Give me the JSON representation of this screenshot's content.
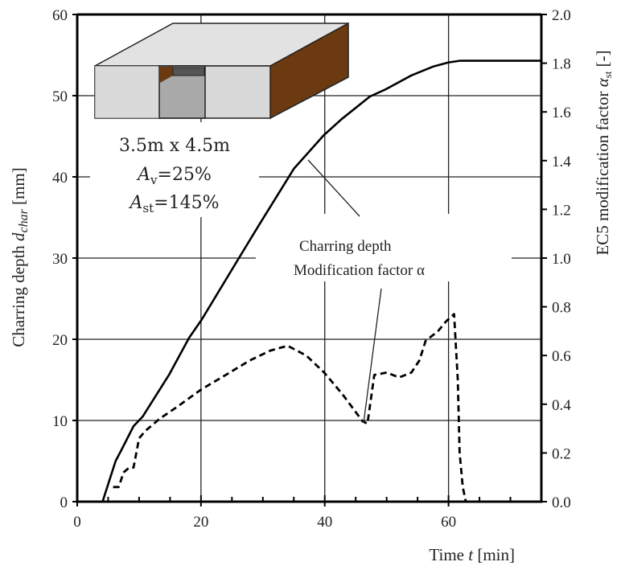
{
  "chart_data": {
    "type": "line",
    "title": "",
    "xlabel": "Time t [min]",
    "ylabel": "Charring depth d_char [mm]",
    "y2label": "EC5 modification factor α_st [-]",
    "xlim": [
      0,
      75
    ],
    "ylim": [
      0,
      60
    ],
    "y2lim": [
      0.0,
      2.0
    ],
    "x_ticks": [
      0,
      20,
      40,
      60
    ],
    "x_minor_step": 5,
    "y_ticks": [
      0,
      10,
      20,
      30,
      40,
      50,
      60
    ],
    "y2_ticks": [
      "0.0",
      "0.2",
      "0.4",
      "0.6",
      "0.8",
      "1.0",
      "1.2",
      "1.4",
      "1.6",
      "1.8",
      "2.0"
    ],
    "grid": true,
    "series": [
      {
        "name": "Charring depth",
        "axis": "left",
        "style": "solid",
        "x": [
          4.1,
          6.2,
          7.1,
          9.1,
          10.6,
          14.9,
          18.1,
          20.1,
          26.2,
          29.4,
          35.0,
          39.8,
          42.7,
          47.3,
          49.9,
          54.0,
          57.6,
          60.0,
          61.8,
          75.0
        ],
        "y": [
          0.0,
          5.0,
          6.3,
          9.3,
          10.5,
          15.7,
          20.2,
          22.4,
          30.1,
          34.1,
          41.0,
          45.1,
          47.1,
          49.9,
          50.8,
          52.5,
          53.6,
          54.1,
          54.3,
          54.3
        ]
      },
      {
        "name": "Modification factor α",
        "axis": "right",
        "style": "dashed",
        "x": [
          5.8,
          6.7,
          7.5,
          8.4,
          9.1,
          10.0,
          11.0,
          13.3,
          16.2,
          20.0,
          24.0,
          27.9,
          31.2,
          34.0,
          37.0,
          39.9,
          42.9,
          46.1,
          46.9,
          48.0,
          50.0,
          52.0,
          54.0,
          55.3,
          56.3,
          58.3,
          59.6,
          60.9,
          61.5,
          61.8,
          62.3,
          62.8
        ],
        "y": [
          0.06,
          0.06,
          0.12,
          0.14,
          0.14,
          0.26,
          0.29,
          0.34,
          0.39,
          0.46,
          0.52,
          0.58,
          0.62,
          0.64,
          0.6,
          0.53,
          0.44,
          0.33,
          0.32,
          0.52,
          0.53,
          0.51,
          0.53,
          0.58,
          0.66,
          0.7,
          0.74,
          0.77,
          0.5,
          0.2,
          0.06,
          0.0
        ]
      }
    ],
    "annotations": [
      "Charring depth",
      "Modification factor α",
      "3.5m x 4.5m",
      "A_v=25%",
      "A_st=145%"
    ],
    "legend_position": "inline leader-line labels, center"
  },
  "labels": {
    "xlabel_main": "Time ",
    "xlabel_var": "t",
    "xlabel_unit": " [min]",
    "ylabel_main": "Charring depth ",
    "ylabel_var": "d",
    "ylabel_sub": "char",
    "ylabel_unit": " [mm]",
    "y2label_main": "EC5 modification factor ",
    "y2label_var": "α",
    "y2label_sub": "st",
    "y2label_unit": " [-]",
    "legend_charring": "Charring depth",
    "legend_alpha": "Modification factor α"
  },
  "inset": {
    "dimensions": "3.5m x 4.5m",
    "av_var": "A",
    "av_sub": "v",
    "av_value": "=25%",
    "ast_var": "A",
    "ast_sub": "st",
    "ast_value": "=145%",
    "colors": {
      "top": "#e2e2e2",
      "front": "#d8d8d8",
      "timber": "#6b3a10",
      "opening": "#a9a9a9",
      "lintel": "#555555"
    }
  }
}
